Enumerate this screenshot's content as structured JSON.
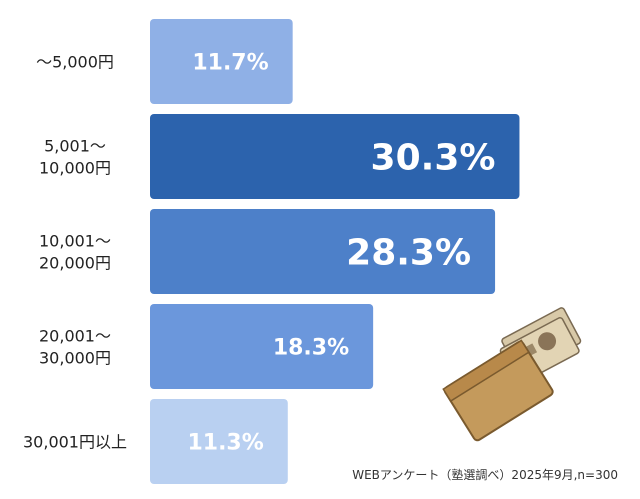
{
  "chart_data": {
    "type": "bar",
    "orientation": "horizontal",
    "categories": [
      [
        "〜5,000円"
      ],
      [
        "5,001〜",
        "10,000円"
      ],
      [
        "10,001〜",
        "20,000円"
      ],
      [
        "20,001〜",
        "30,000円"
      ],
      [
        "30,001円以上"
      ]
    ],
    "values": [
      11.7,
      30.3,
      28.3,
      18.3,
      11.3
    ],
    "value_labels": [
      "11.7%",
      "30.3%",
      "28.3%",
      "18.3%",
      "11.3%"
    ],
    "unit": "%",
    "title": "",
    "xlabel": "",
    "ylabel": "",
    "xlim": [
      0,
      31
    ],
    "grid": false,
    "legend": "none",
    "colors": [
      "#8fb0e6",
      "#2c63ad",
      "#4d80c9",
      "#6b97dc",
      "#b9d0f1"
    ]
  },
  "source_note": "WEBアンケート（塾選調べ）2025年9月,n=300",
  "illustration": "money-envelope-icon"
}
